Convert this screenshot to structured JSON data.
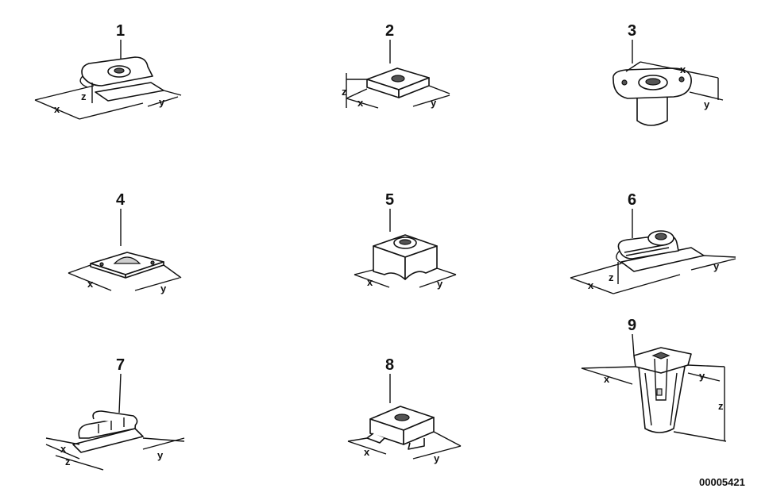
{
  "diagram": {
    "parts": [
      {
        "number": "1",
        "dims": [
          "x",
          "y",
          "z"
        ]
      },
      {
        "number": "2",
        "dims": [
          "x",
          "y",
          "z"
        ]
      },
      {
        "number": "3",
        "dims": [
          "x",
          "y"
        ]
      },
      {
        "number": "4",
        "dims": [
          "x",
          "y"
        ]
      },
      {
        "number": "5",
        "dims": [
          "x",
          "y"
        ]
      },
      {
        "number": "6",
        "dims": [
          "x",
          "y",
          "z"
        ]
      },
      {
        "number": "7",
        "dims": [
          "x",
          "y",
          "z"
        ]
      },
      {
        "number": "8",
        "dims": [
          "x",
          "y"
        ]
      },
      {
        "number": "9",
        "dims": [
          "x",
          "y",
          "z"
        ]
      }
    ],
    "drawing_code": "00005421"
  }
}
